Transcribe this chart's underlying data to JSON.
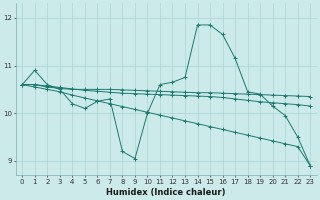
{
  "xlabel": "Humidex (Indice chaleur)",
  "bg_color": "#cdeaea",
  "grid_color": "#a8d5d5",
  "line_color": "#1a7a6e",
  "xlim": [
    -0.5,
    23.5
  ],
  "ylim": [
    8.7,
    12.3
  ],
  "yticks": [
    9,
    10,
    11,
    12
  ],
  "xticks": [
    0,
    1,
    2,
    3,
    4,
    5,
    6,
    7,
    8,
    9,
    10,
    11,
    12,
    13,
    14,
    15,
    16,
    17,
    18,
    19,
    20,
    21,
    22,
    23
  ],
  "series": [
    {
      "x": [
        0,
        1,
        2,
        3,
        4,
        5,
        6,
        7,
        8,
        9,
        10,
        11,
        12,
        13,
        14,
        15,
        16,
        17,
        18,
        19,
        20,
        21,
        22,
        23
      ],
      "y": [
        10.6,
        10.9,
        10.6,
        10.5,
        10.2,
        10.1,
        10.25,
        10.3,
        9.2,
        9.05,
        10.0,
        10.6,
        10.65,
        10.75,
        11.85,
        11.85,
        11.65,
        11.15,
        10.45,
        10.4,
        10.15,
        9.95,
        9.5,
        8.9
      ]
    },
    {
      "x": [
        0,
        1,
        2,
        3,
        4,
        5,
        6,
        7,
        8,
        9,
        10,
        11,
        12,
        13,
        14,
        15,
        16,
        17,
        18,
        19,
        20,
        21,
        22,
        23
      ],
      "y": [
        10.6,
        10.6,
        10.57,
        10.54,
        10.51,
        10.48,
        10.46,
        10.44,
        10.42,
        10.41,
        10.4,
        10.39,
        10.38,
        10.37,
        10.36,
        10.35,
        10.33,
        10.3,
        10.27,
        10.24,
        10.22,
        10.2,
        10.18,
        10.15
      ]
    },
    {
      "x": [
        0,
        1,
        2,
        3,
        4,
        5,
        6,
        7,
        8,
        9,
        10,
        11,
        12,
        13,
        14,
        15,
        16,
        17,
        18,
        19,
        20,
        21,
        22,
        23
      ],
      "y": [
        10.6,
        10.6,
        10.55,
        10.52,
        10.5,
        10.5,
        10.5,
        10.5,
        10.49,
        10.48,
        10.47,
        10.46,
        10.45,
        10.44,
        10.43,
        10.43,
        10.42,
        10.41,
        10.4,
        10.39,
        10.38,
        10.37,
        10.36,
        10.35
      ]
    },
    {
      "x": [
        0,
        1,
        2,
        3,
        4,
        5,
        6,
        7,
        8,
        9,
        10,
        11,
        12,
        13,
        14,
        15,
        16,
        17,
        18,
        19,
        20,
        21,
        22,
        23
      ],
      "y": [
        10.6,
        10.55,
        10.5,
        10.45,
        10.38,
        10.32,
        10.26,
        10.2,
        10.14,
        10.08,
        10.02,
        9.96,
        9.9,
        9.84,
        9.78,
        9.72,
        9.66,
        9.6,
        9.54,
        9.48,
        9.42,
        9.36,
        9.3,
        8.9
      ]
    }
  ]
}
